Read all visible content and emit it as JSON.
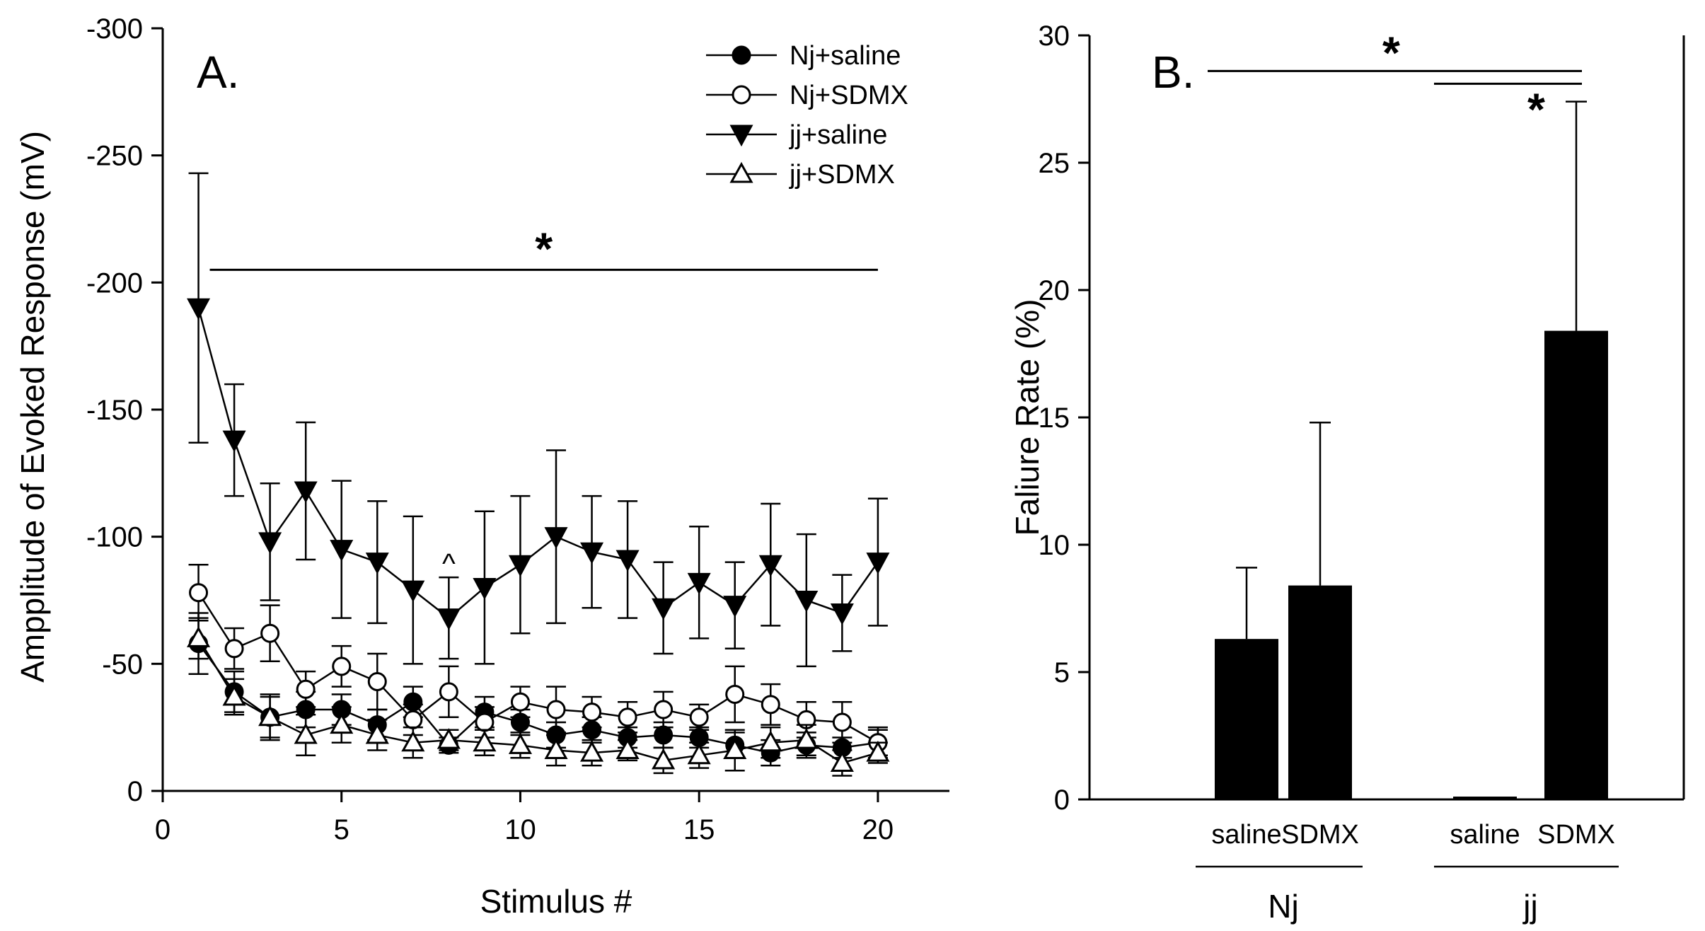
{
  "chart_data": [
    {
      "panel": "A.",
      "type": "line",
      "xlabel": "Stimulus #",
      "ylabel": "Ampplitude of Evoked Response (mV)",
      "xlim": [
        0,
        22
      ],
      "ylim": [
        0,
        -300
      ],
      "y_inverted": true,
      "x_ticks": [
        0,
        5,
        10,
        15,
        20
      ],
      "y_ticks": [
        0,
        -50,
        -100,
        -150,
        -200,
        -250,
        -300
      ],
      "legend_position": "top-right",
      "x": [
        1,
        2,
        3,
        4,
        5,
        6,
        7,
        8,
        9,
        10,
        11,
        12,
        13,
        14,
        15,
        16,
        17,
        18,
        19,
        20
      ],
      "series": [
        {
          "name": "Nj+saline",
          "marker": "filled-circle",
          "values": [
            -58,
            -39,
            -29,
            -32,
            -32,
            -26,
            -35,
            -18,
            -31,
            -27,
            -22,
            -24,
            -21,
            -22,
            -21,
            -18,
            -15,
            -18,
            -17,
            -19
          ],
          "errors": [
            12,
            8,
            8,
            7,
            6,
            6,
            6,
            3,
            6,
            5,
            5,
            5,
            4,
            5,
            4,
            5,
            5,
            5,
            4,
            5
          ]
        },
        {
          "name": "Nj+SDMX",
          "marker": "open-circle",
          "values": [
            -78,
            -56,
            -62,
            -40,
            -49,
            -43,
            -28,
            -39,
            -27,
            -35,
            -32,
            -31,
            -29,
            -32,
            -29,
            -38,
            -34,
            -28,
            -27,
            -19
          ],
          "errors": [
            11,
            8,
            11,
            7,
            8,
            11,
            6,
            10,
            6,
            6,
            9,
            6,
            6,
            7,
            5,
            11,
            8,
            7,
            8,
            6
          ]
        },
        {
          "name": "jj+saline",
          "marker": "filled-triangle-down",
          "values": [
            -190,
            -138,
            -98,
            -118,
            -95,
            -90,
            -79,
            -68,
            -80,
            -89,
            -100,
            -94,
            -91,
            -72,
            -82,
            -73,
            -89,
            -75,
            -70,
            -90
          ],
          "errors": [
            53,
            22,
            23,
            27,
            27,
            24,
            29,
            16,
            30,
            27,
            34,
            22,
            23,
            18,
            22,
            17,
            24,
            26,
            15,
            25
          ]
        },
        {
          "name": "jj+SDMX",
          "marker": "open-triangle-up",
          "values": [
            -60,
            -37,
            -29,
            -22,
            -26,
            -22,
            -19,
            -20,
            -19,
            -18,
            -16,
            -15,
            -16,
            -12,
            -14,
            -16,
            -19,
            -20,
            -11,
            -15
          ],
          "errors": [
            8,
            7,
            9,
            8,
            7,
            6,
            6,
            4,
            5,
            5,
            6,
            5,
            4,
            5,
            5,
            8,
            6,
            6,
            5,
            4
          ]
        }
      ],
      "annotations": [
        {
          "text": "*",
          "kind": "significance-bar",
          "x_from": 1,
          "x_to": 20,
          "y": -205
        },
        {
          "text": "^",
          "kind": "mark",
          "x": 8,
          "y": -93
        }
      ]
    },
    {
      "panel": "B.",
      "type": "bar",
      "ylabel": "Faliure Rate (%)",
      "ylim": [
        0,
        30
      ],
      "y_ticks": [
        0,
        5,
        10,
        15,
        20,
        25,
        30
      ],
      "groups": [
        {
          "name": "Nj",
          "categories": [
            "saline",
            "SDMX"
          ]
        },
        {
          "name": "jj",
          "categories": [
            "saline",
            "SDMX"
          ]
        }
      ],
      "categories": [
        "saline",
        "SDMX",
        "saline",
        "SDMX"
      ],
      "values": [
        6.3,
        8.4,
        0.1,
        18.4
      ],
      "errors": [
        2.8,
        6.4,
        0,
        9.0
      ],
      "bar_color": "#000000",
      "annotations": [
        {
          "text": "*",
          "kind": "significance-bar",
          "from_bar": 0,
          "to_bar": 3,
          "y": 28.6
        },
        {
          "text": "*",
          "kind": "significance-bar",
          "from_bar": 2,
          "to_bar": 3,
          "y": 28.1
        }
      ]
    }
  ]
}
